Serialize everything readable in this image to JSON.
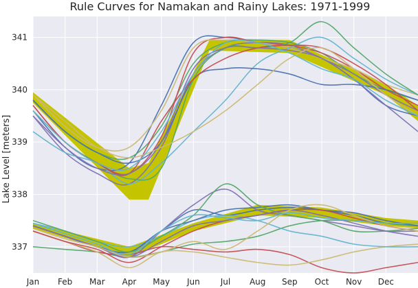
{
  "chart_data": {
    "type": "line",
    "title": "Rule Curves for Namakan and Rainy Lakes: 1971-1999",
    "xlabel": "",
    "ylabel": "Lake Level [meters]",
    "x_unit": "month (1 = Jan 1, 13 = Dec 31)",
    "xlim": [
      1,
      13
    ],
    "ylim": [
      336.5,
      341.4
    ],
    "x_tick_labels": [
      "Jan",
      "Feb",
      "Mar",
      "Apr",
      "May",
      "Jun",
      "Jul",
      "Aug",
      "Sep",
      "Oct",
      "Nov",
      "Dec"
    ],
    "y_ticks": [
      337,
      338,
      339,
      340,
      341
    ],
    "grid": true,
    "legend": "none",
    "background_color": "#eaeaf2",
    "band_color": "#c4c400",
    "bands": [
      {
        "lake": "Namakan",
        "x": [
          1,
          4,
          4.6,
          6.5,
          9,
          12,
          13
        ],
        "upper": [
          339.95,
          338.5,
          338.6,
          340.95,
          340.95,
          340.1,
          339.7
        ],
        "lower": [
          339.75,
          337.9,
          337.9,
          340.75,
          340.7,
          339.9,
          339.4
        ]
      },
      {
        "lake": "Rainy",
        "x": [
          1,
          4,
          6,
          8,
          10,
          12,
          13
        ],
        "upper": [
          337.45,
          337.0,
          337.45,
          337.8,
          337.75,
          337.55,
          337.5
        ],
        "lower": [
          337.35,
          336.8,
          337.3,
          337.6,
          337.55,
          337.4,
          337.35
        ]
      }
    ],
    "series_namakan": [
      {
        "values": [
          339.6,
          338.9,
          338.5,
          338.6,
          339.7,
          340.9,
          341.0,
          340.9,
          340.8,
          340.6,
          340.2,
          339.7,
          339.5
        ]
      },
      {
        "values": [
          339.8,
          339.2,
          338.8,
          338.7,
          339.3,
          340.5,
          340.9,
          340.95,
          340.9,
          340.7,
          340.3,
          340.0,
          339.8
        ]
      },
      {
        "values": [
          339.7,
          339.0,
          338.6,
          338.4,
          339.1,
          340.7,
          341.0,
          340.9,
          340.85,
          340.7,
          340.4,
          340.0,
          339.7
        ]
      },
      {
        "values": [
          339.5,
          338.8,
          338.4,
          338.2,
          338.9,
          340.3,
          340.8,
          340.9,
          340.85,
          340.6,
          340.3,
          339.9,
          339.6
        ]
      },
      {
        "values": [
          339.9,
          339.3,
          338.9,
          338.9,
          339.6,
          340.8,
          340.95,
          340.9,
          340.8,
          340.6,
          340.4,
          340.1,
          339.9
        ]
      },
      {
        "values": [
          339.2,
          338.8,
          338.6,
          338.2,
          338.6,
          339.2,
          339.8,
          340.5,
          340.8,
          341.0,
          340.6,
          340.2,
          339.9
        ]
      },
      {
        "values": [
          339.8,
          339.2,
          338.8,
          338.6,
          339.0,
          340.2,
          340.4,
          340.4,
          340.3,
          340.1,
          340.1,
          340.0,
          339.8
        ]
      },
      {
        "values": [
          339.6,
          339.0,
          338.6,
          338.3,
          338.5,
          340.2,
          340.8,
          340.8,
          340.9,
          341.3,
          340.8,
          340.3,
          339.9
        ]
      },
      {
        "values": [
          339.7,
          339.0,
          338.6,
          338.4,
          339.4,
          340.2,
          340.6,
          340.8,
          340.85,
          340.8,
          340.5,
          340.1,
          339.6
        ]
      },
      {
        "values": [
          339.5,
          338.9,
          338.5,
          338.4,
          339.0,
          340.4,
          340.8,
          340.8,
          340.75,
          340.6,
          340.2,
          339.7,
          339.2
        ]
      },
      {
        "values": [
          339.9,
          339.4,
          338.9,
          338.7,
          338.9,
          339.2,
          339.6,
          340.1,
          340.6,
          340.8,
          340.4,
          339.9,
          339.5
        ]
      },
      {
        "values": [
          339.6,
          339.0,
          338.6,
          338.5,
          339.2,
          340.3,
          340.9,
          340.9,
          340.7,
          340.4,
          340.2,
          339.8,
          339.5
        ]
      }
    ],
    "series_rainy": [
      {
        "values": [
          337.4,
          337.2,
          337.0,
          336.9,
          337.3,
          337.7,
          337.6,
          337.7,
          337.75,
          337.7,
          337.6,
          337.45,
          337.4
        ]
      },
      {
        "values": [
          337.0,
          336.95,
          336.9,
          336.8,
          336.9,
          337.05,
          337.1,
          337.2,
          337.4,
          337.5,
          337.5,
          337.45,
          337.4
        ]
      },
      {
        "values": [
          337.3,
          337.1,
          336.9,
          336.85,
          337.0,
          336.95,
          336.9,
          336.95,
          336.85,
          336.6,
          336.5,
          336.6,
          336.7
        ]
      },
      {
        "values": [
          337.4,
          337.2,
          337.0,
          336.8,
          337.3,
          337.8,
          338.1,
          337.7,
          337.6,
          337.5,
          337.4,
          337.3,
          337.3
        ]
      },
      {
        "values": [
          337.3,
          337.1,
          336.9,
          336.6,
          336.9,
          336.9,
          336.8,
          336.7,
          336.65,
          336.75,
          336.9,
          337.0,
          337.05
        ]
      },
      {
        "values": [
          337.45,
          337.3,
          337.1,
          337.0,
          337.2,
          337.5,
          337.6,
          337.5,
          337.3,
          337.2,
          337.05,
          337.0,
          337.0
        ]
      },
      {
        "values": [
          337.4,
          337.2,
          337.0,
          336.9,
          337.3,
          337.5,
          337.7,
          337.75,
          337.8,
          337.7,
          337.65,
          337.5,
          337.4
        ]
      },
      {
        "values": [
          337.5,
          337.3,
          337.1,
          336.9,
          337.2,
          337.6,
          338.2,
          337.8,
          337.6,
          337.5,
          337.3,
          337.3,
          337.35
        ]
      },
      {
        "values": [
          337.3,
          337.1,
          336.95,
          336.7,
          337.0,
          337.3,
          337.5,
          337.6,
          337.7,
          337.7,
          337.55,
          337.4,
          337.3
        ]
      },
      {
        "values": [
          337.4,
          337.2,
          337.0,
          336.8,
          337.1,
          337.4,
          337.5,
          337.6,
          337.7,
          337.6,
          337.45,
          337.3,
          337.2
        ]
      },
      {
        "values": [
          337.35,
          337.15,
          337.0,
          336.8,
          336.9,
          337.1,
          336.95,
          337.3,
          337.7,
          337.8,
          337.6,
          337.4,
          337.3
        ]
      },
      {
        "values": [
          337.45,
          337.25,
          337.05,
          336.85,
          337.3,
          337.6,
          337.55,
          337.5,
          337.65,
          337.55,
          337.5,
          337.45,
          337.45
        ]
      }
    ],
    "series_colors": [
      "#4c72b0",
      "#55a868",
      "#c44e52",
      "#8172b2",
      "#ccb974",
      "#64b5cd"
    ]
  }
}
